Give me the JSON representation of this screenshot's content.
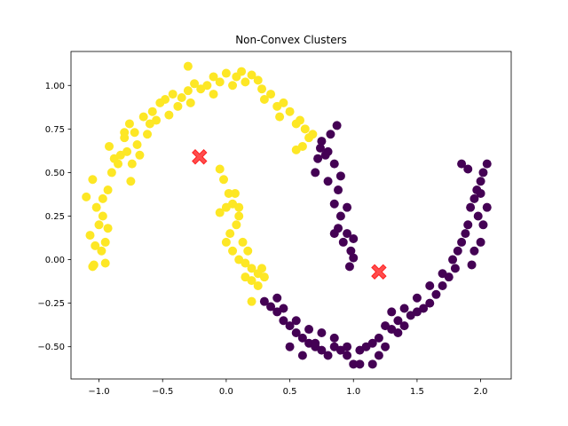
{
  "chart_data": {
    "type": "scatter",
    "title": "Non-Convex Clusters",
    "xlabel": "",
    "ylabel": "",
    "xlim": [
      -1.22,
      2.24
    ],
    "ylim": [
      -0.685,
      1.195
    ],
    "xticks": [
      -1.0,
      -0.5,
      0.0,
      0.5,
      1.0,
      1.5,
      2.0
    ],
    "xtick_labels": [
      "−1.0",
      "−0.5",
      "0.0",
      "0.5",
      "1.0",
      "1.5",
      "2.0"
    ],
    "yticks": [
      -0.5,
      -0.25,
      0.0,
      0.25,
      0.5,
      0.75,
      1.0
    ],
    "ytick_labels": [
      "−0.50",
      "−0.25",
      "0.00",
      "0.25",
      "0.50",
      "0.75",
      "1.00"
    ],
    "grid": false,
    "colors": {
      "cluster_a": "#fde725",
      "cluster_b": "#440154",
      "centroid": "#ff2020"
    },
    "series": [
      {
        "cluster": "cluster_a",
        "points": [
          [
            -1.1,
            0.36
          ],
          [
            -1.05,
            0.46
          ],
          [
            -1.02,
            0.3
          ],
          [
            -1.07,
            0.14
          ],
          [
            -1.03,
            0.08
          ],
          [
            -1.0,
            0.2
          ],
          [
            -0.98,
            0.05
          ],
          [
            -0.95,
            0.1
          ],
          [
            -0.97,
            0.25
          ],
          [
            -0.93,
            0.4
          ],
          [
            -1.05,
            -0.04
          ],
          [
            -1.04,
            -0.03
          ],
          [
            -0.95,
            -0.02
          ],
          [
            -0.97,
            0.35
          ],
          [
            -0.93,
            0.18
          ],
          [
            -0.9,
            0.5
          ],
          [
            -0.88,
            0.58
          ],
          [
            -0.92,
            0.65
          ],
          [
            -0.85,
            0.55
          ],
          [
            -0.83,
            0.6
          ],
          [
            -0.8,
            0.7
          ],
          [
            -0.78,
            0.62
          ],
          [
            -0.76,
            0.78
          ],
          [
            -0.72,
            0.73
          ],
          [
            -0.7,
            0.66
          ],
          [
            -0.74,
            0.55
          ],
          [
            -0.68,
            0.6
          ],
          [
            -0.65,
            0.82
          ],
          [
            -0.6,
            0.78
          ],
          [
            -0.58,
            0.85
          ],
          [
            -0.55,
            0.8
          ],
          [
            -0.52,
            0.9
          ],
          [
            -0.48,
            0.92
          ],
          [
            -0.45,
            0.83
          ],
          [
            -0.42,
            0.95
          ],
          [
            -0.38,
            0.88
          ],
          [
            -0.35,
            0.93
          ],
          [
            -0.3,
            0.97
          ],
          [
            -0.28,
            0.9
          ],
          [
            -0.25,
            1.01
          ],
          [
            -0.2,
            0.98
          ],
          [
            -0.15,
            1.0
          ],
          [
            -0.1,
            1.05
          ],
          [
            -0.05,
            1.02
          ],
          [
            0.0,
            1.07
          ],
          [
            0.05,
            1.0
          ],
          [
            0.08,
            1.05
          ],
          [
            0.12,
            1.08
          ],
          [
            0.15,
            1.02
          ],
          [
            0.2,
            1.06
          ],
          [
            0.25,
            1.03
          ],
          [
            0.28,
            0.98
          ],
          [
            0.3,
            0.92
          ],
          [
            0.35,
            0.95
          ],
          [
            0.4,
            0.88
          ],
          [
            0.42,
            0.82
          ],
          [
            0.45,
            0.9
          ],
          [
            0.5,
            0.85
          ],
          [
            0.55,
            0.78
          ],
          [
            0.58,
            0.8
          ],
          [
            0.62,
            0.75
          ],
          [
            0.65,
            0.7
          ],
          [
            0.68,
            0.72
          ],
          [
            -0.3,
            1.11
          ],
          [
            -0.8,
            0.73
          ],
          [
            -0.75,
            0.45
          ],
          [
            -0.62,
            0.72
          ],
          [
            0.55,
            0.63
          ],
          [
            0.6,
            0.65
          ],
          [
            -0.1,
            0.95
          ],
          [
            -0.05,
            0.52
          ],
          [
            -0.02,
            0.46
          ],
          [
            0.02,
            0.38
          ],
          [
            0.05,
            0.32
          ],
          [
            0.0,
            0.3
          ],
          [
            -0.05,
            0.27
          ],
          [
            0.08,
            0.2
          ],
          [
            0.1,
            0.25
          ],
          [
            0.03,
            0.15
          ],
          [
            0.0,
            0.1
          ],
          [
            0.05,
            0.05
          ],
          [
            0.1,
            0.0
          ],
          [
            0.15,
            -0.02
          ],
          [
            0.2,
            -0.05
          ],
          [
            0.15,
            -0.1
          ],
          [
            0.2,
            -0.12
          ],
          [
            0.25,
            -0.08
          ],
          [
            0.25,
            -0.15
          ],
          [
            0.3,
            -0.1
          ],
          [
            0.2,
            -0.24
          ],
          [
            0.07,
            0.38
          ],
          [
            0.1,
            0.3
          ],
          [
            0.13,
            0.1
          ],
          [
            0.17,
            0.05
          ],
          [
            0.28,
            -0.05
          ]
        ]
      },
      {
        "cluster": "cluster_b",
        "points": [
          [
            0.75,
            0.68
          ],
          [
            0.8,
            0.62
          ],
          [
            0.85,
            0.55
          ],
          [
            0.8,
            0.45
          ],
          [
            0.88,
            0.4
          ],
          [
            0.85,
            0.32
          ],
          [
            0.9,
            0.25
          ],
          [
            0.88,
            0.18
          ],
          [
            0.95,
            0.15
          ],
          [
            0.92,
            0.1
          ],
          [
            0.98,
            0.05
          ],
          [
            1.0,
            0.12
          ],
          [
            0.95,
            0.3
          ],
          [
            0.9,
            0.48
          ],
          [
            0.78,
            0.6
          ],
          [
            0.72,
            0.58
          ],
          [
            0.82,
            0.72
          ],
          [
            0.7,
            0.5
          ],
          [
            0.85,
            0.15
          ],
          [
            1.0,
            0.01
          ],
          [
            0.97,
            -0.04
          ],
          [
            0.87,
            0.77
          ],
          [
            0.74,
            0.64
          ],
          [
            0.3,
            -0.24
          ],
          [
            0.35,
            -0.27
          ],
          [
            0.4,
            -0.3
          ],
          [
            0.45,
            -0.35
          ],
          [
            0.5,
            -0.38
          ],
          [
            0.55,
            -0.42
          ],
          [
            0.6,
            -0.45
          ],
          [
            0.65,
            -0.48
          ],
          [
            0.7,
            -0.5
          ],
          [
            0.75,
            -0.52
          ],
          [
            0.8,
            -0.55
          ],
          [
            0.85,
            -0.5
          ],
          [
            0.9,
            -0.52
          ],
          [
            0.95,
            -0.55
          ],
          [
            1.0,
            -0.6
          ],
          [
            1.05,
            -0.52
          ],
          [
            1.1,
            -0.5
          ],
          [
            1.15,
            -0.48
          ],
          [
            1.2,
            -0.45
          ],
          [
            1.25,
            -0.5
          ],
          [
            1.3,
            -0.4
          ],
          [
            1.35,
            -0.42
          ],
          [
            1.4,
            -0.38
          ],
          [
            1.45,
            -0.32
          ],
          [
            1.5,
            -0.3
          ],
          [
            1.55,
            -0.28
          ],
          [
            1.6,
            -0.25
          ],
          [
            1.65,
            -0.2
          ],
          [
            1.7,
            -0.15
          ],
          [
            1.75,
            -0.1
          ],
          [
            1.8,
            -0.05
          ],
          [
            1.82,
            0.05
          ],
          [
            1.85,
            0.1
          ],
          [
            1.88,
            0.15
          ],
          [
            1.9,
            0.2
          ],
          [
            1.92,
            0.3
          ],
          [
            1.95,
            0.35
          ],
          [
            1.97,
            0.4
          ],
          [
            2.0,
            0.45
          ],
          [
            2.02,
            0.5
          ],
          [
            2.05,
            0.55
          ],
          [
            2.0,
            0.38
          ],
          [
            1.98,
            0.25
          ],
          [
            2.05,
            0.3
          ],
          [
            1.9,
            0.52
          ],
          [
            1.85,
            0.55
          ],
          [
            1.78,
            0.0
          ],
          [
            1.7,
            -0.08
          ],
          [
            1.6,
            -0.15
          ],
          [
            1.5,
            -0.22
          ],
          [
            1.4,
            -0.28
          ],
          [
            1.3,
            -0.3
          ],
          [
            1.2,
            -0.55
          ],
          [
            1.15,
            -0.6
          ],
          [
            1.05,
            -0.6
          ],
          [
            0.95,
            -0.5
          ],
          [
            0.85,
            -0.45
          ],
          [
            0.75,
            -0.42
          ],
          [
            0.65,
            -0.4
          ],
          [
            0.55,
            -0.35
          ],
          [
            0.45,
            -0.28
          ],
          [
            0.4,
            -0.22
          ],
          [
            0.5,
            -0.5
          ],
          [
            0.6,
            -0.55
          ],
          [
            0.7,
            -0.48
          ],
          [
            1.25,
            -0.38
          ],
          [
            1.35,
            -0.35
          ],
          [
            2.02,
            0.2
          ],
          [
            1.95,
            0.05
          ],
          [
            2.0,
            0.1
          ],
          [
            1.93,
            -0.03
          ]
        ]
      },
      {
        "cluster": "centroid",
        "points": [
          [
            -0.21,
            0.59
          ],
          [
            1.2,
            -0.07
          ]
        ]
      }
    ]
  }
}
